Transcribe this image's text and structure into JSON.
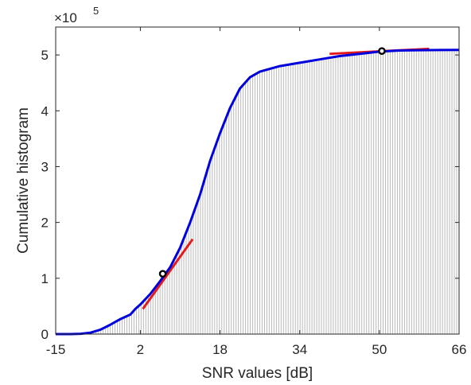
{
  "chart_data": {
    "type": "area",
    "xlabel": "SNR values [dB]",
    "ylabel": "Cumulative histogram",
    "x_ticks": [
      "-15",
      "2",
      "18",
      "34",
      "50",
      "66"
    ],
    "y_ticks": [
      "0",
      "1",
      "2",
      "3",
      "4",
      "5"
    ],
    "y_multiplier_base": "×10",
    "y_multiplier_exp": "5",
    "xlim": [
      -15,
      66
    ],
    "ylim": [
      0,
      550000
    ],
    "grid": false,
    "series": [
      {
        "type": "line",
        "color": "#0000dd",
        "points": [
          [
            -15,
            0
          ],
          [
            -12,
            0
          ],
          [
            -10,
            500
          ],
          [
            -8,
            2500
          ],
          [
            -6,
            8000
          ],
          [
            -4,
            17000
          ],
          [
            -2,
            27000
          ],
          [
            0,
            35000
          ],
          [
            1,
            45000
          ],
          [
            2,
            53000
          ],
          [
            4,
            72000
          ],
          [
            6,
            95000
          ],
          [
            8,
            120000
          ],
          [
            10,
            155000
          ],
          [
            12,
            200000
          ],
          [
            14,
            250000
          ],
          [
            16,
            310000
          ],
          [
            18,
            360000
          ],
          [
            20,
            405000
          ],
          [
            22,
            440000
          ],
          [
            24,
            460000
          ],
          [
            26,
            470000
          ],
          [
            28,
            475000
          ],
          [
            30,
            480000
          ],
          [
            34,
            486000
          ],
          [
            38,
            492000
          ],
          [
            42,
            498000
          ],
          [
            46,
            502000
          ],
          [
            50,
            506000
          ],
          [
            54,
            508000
          ],
          [
            58,
            508500
          ],
          [
            62,
            508800
          ],
          [
            66,
            509000
          ]
        ]
      }
    ],
    "bars": {
      "type": "stem",
      "color": "#bfbfbf",
      "value_source": "series-0"
    },
    "tangents": [
      {
        "color": "#e41a1c",
        "x_from": 2.5,
        "x_to": 12.5,
        "y_from": 45000,
        "y_to": 170000
      },
      {
        "color": "#e41a1c",
        "x_from": 40,
        "x_to": 60,
        "y_from": 502000,
        "y_to": 511000
      }
    ],
    "markers": [
      {
        "x": 6.5,
        "y": 108000,
        "label": ""
      },
      {
        "x": 50.5,
        "y": 507000,
        "label": ""
      }
    ]
  }
}
